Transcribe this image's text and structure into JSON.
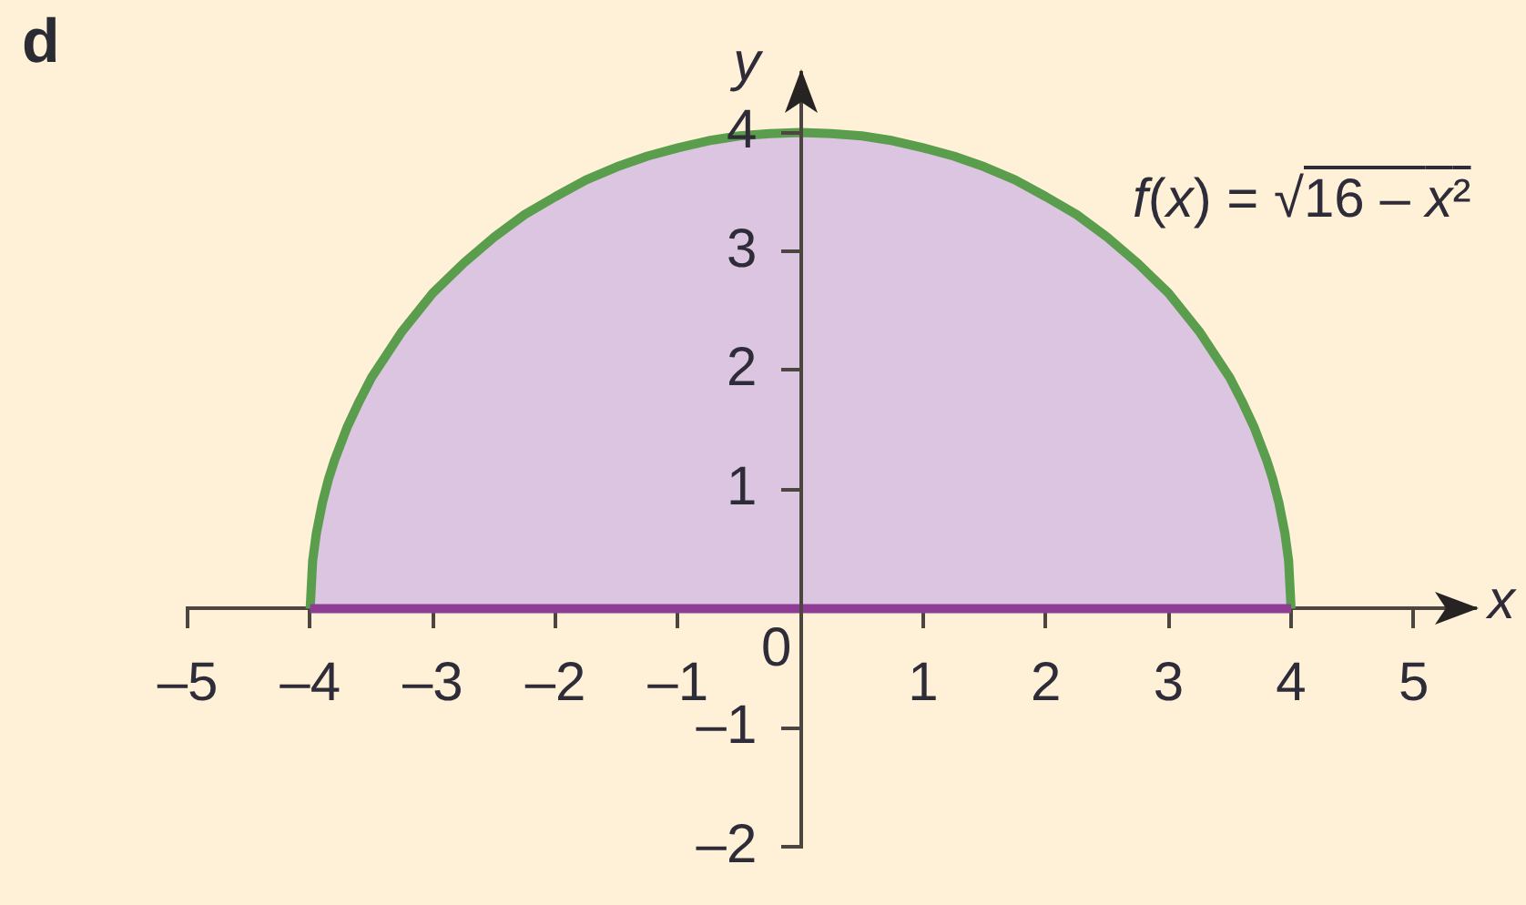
{
  "chart_data": {
    "type": "area",
    "title": "d",
    "xlabel": "x",
    "ylabel": "y",
    "x": [
      -4,
      -3.98,
      -3.95,
      -3.9,
      -3.85,
      -3.8,
      -3.7,
      -3.6,
      -3.5,
      -3.25,
      -3,
      -2.75,
      -2.5,
      -2.25,
      -2,
      -1.75,
      -1.5,
      -1.25,
      -1,
      -0.75,
      -0.5,
      -0.25,
      0,
      0.25,
      0.5,
      0.75,
      1,
      1.25,
      1.5,
      1.75,
      2,
      2.25,
      2.5,
      2.75,
      3,
      3.25,
      3.5,
      3.6,
      3.7,
      3.8,
      3.85,
      3.9,
      3.95,
      3.98,
      4
    ],
    "series": [
      {
        "type": "area",
        "name": "f(x) = √16 – x²",
        "color": "#dcc5e0",
        "values": [
          0,
          0.4,
          0.63,
          0.89,
          1.09,
          1.25,
          1.52,
          1.74,
          1.94,
          2.33,
          2.65,
          2.9,
          3.12,
          3.31,
          3.46,
          3.6,
          3.71,
          3.8,
          3.87,
          3.93,
          3.97,
          3.99,
          4,
          3.99,
          3.97,
          3.93,
          3.87,
          3.8,
          3.71,
          3.6,
          3.46,
          3.31,
          3.12,
          2.9,
          2.65,
          2.33,
          1.94,
          1.74,
          1.52,
          1.25,
          1.09,
          0.89,
          0.63,
          0.4,
          0
        ]
      }
    ],
    "xlim": [
      -5,
      5.5
    ],
    "ylim": [
      -2,
      4.5
    ],
    "xticks": [
      {
        "value": -5,
        "label": "–5"
      },
      {
        "value": -4,
        "label": "–4"
      },
      {
        "value": -3,
        "label": "–3"
      },
      {
        "value": -2,
        "label": "–2"
      },
      {
        "value": -1,
        "label": "–1"
      },
      1,
      2,
      3,
      4,
      5
    ],
    "yticks": [
      {
        "value": -2,
        "label": "–2"
      },
      {
        "value": -1,
        "label": "–1"
      },
      1,
      2,
      3,
      4
    ],
    "annotations": [
      {
        "text": "0",
        "x": 0,
        "y": 0
      }
    ]
  }
}
